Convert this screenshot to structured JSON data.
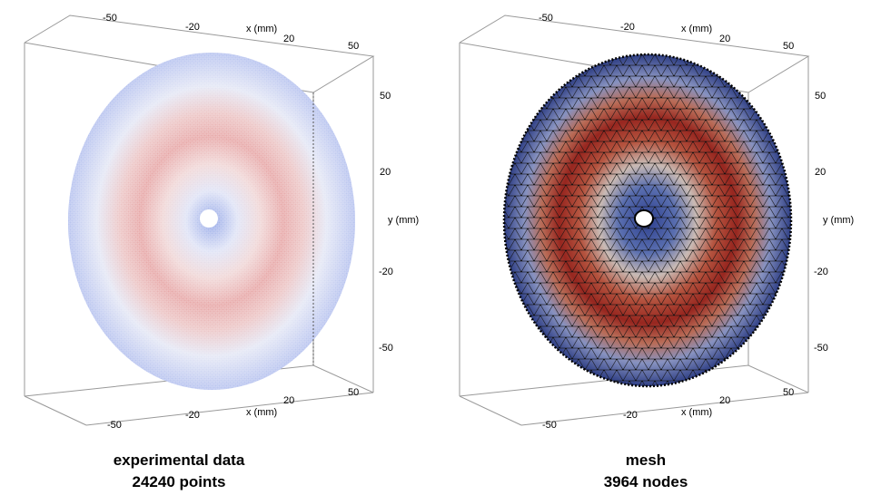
{
  "panels": [
    {
      "id": "experimental",
      "caption_line1": "experimental data",
      "caption_line2": "24240 points",
      "x_axis_label": "x (mm)",
      "y_axis_label": "y (mm)",
      "x_ticks_top": [
        "-50",
        "-20",
        "20",
        "50"
      ],
      "x_ticks_bottom": [
        "-50",
        "-20",
        "20",
        "50"
      ],
      "y_ticks": [
        "50",
        "20",
        "-20",
        "-50"
      ]
    },
    {
      "id": "mesh",
      "caption_line1": "mesh",
      "caption_line2": "3964 nodes",
      "x_axis_label": "x (mm)",
      "y_axis_label": "y (mm)",
      "x_ticks_top": [
        "-50",
        "-20",
        "20",
        "50"
      ],
      "x_ticks_bottom": [
        "-50",
        "-20",
        "20",
        "50"
      ],
      "y_ticks": [
        "50",
        "20",
        "-20",
        "-50"
      ]
    }
  ],
  "colormap": {
    "low": "#3b4f9a",
    "mid": "#dcdcdc",
    "high": "#9b1c1c"
  },
  "experimental_colormap": {
    "low": "#a9b8ee",
    "mid": "#f2f2f2",
    "high": "#dc8080"
  }
}
